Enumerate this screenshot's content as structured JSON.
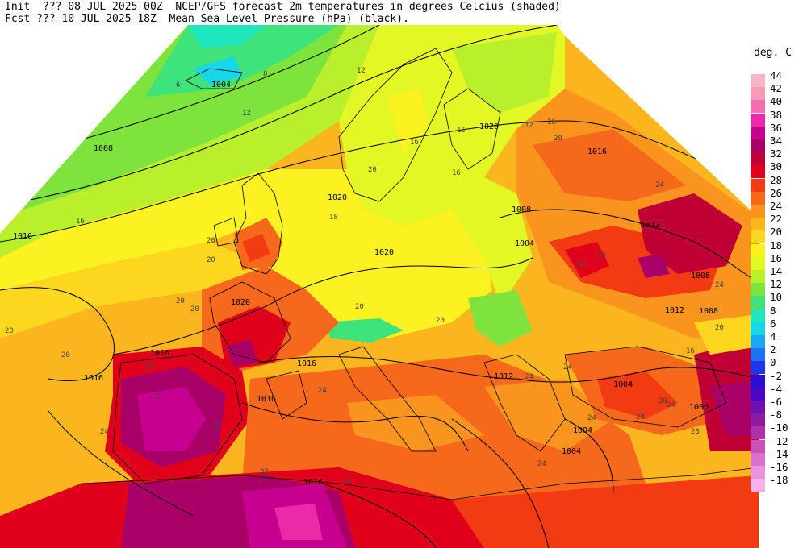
{
  "header": {
    "line1": "Init  ??? 08 JUL 2025 00Z  NCEP/GFS forecast 2m temperatures in degrees Celcius (shaded)",
    "line2": "Fcst ??? 10 JUL 2025 18Z  Mean Sea-Level Pressure (hPa) (black)."
  },
  "legend": {
    "title": "deg. C",
    "entries": [
      {
        "label": "44",
        "color": "#f7b6c6"
      },
      {
        "label": "42",
        "color": "#f59ab8"
      },
      {
        "label": "40",
        "color": "#f46fb0"
      },
      {
        "label": "38",
        "color": "#ea2aa6"
      },
      {
        "label": "36",
        "color": "#c8008f"
      },
      {
        "label": "34",
        "color": "#a80066"
      },
      {
        "label": "32",
        "color": "#c00035"
      },
      {
        "label": "30",
        "color": "#e0001c"
      },
      {
        "label": "28",
        "color": "#f23a13"
      },
      {
        "label": "26",
        "color": "#f6681c"
      },
      {
        "label": "24",
        "color": "#f9941e"
      },
      {
        "label": "22",
        "color": "#fbb51f"
      },
      {
        "label": "20",
        "color": "#fcd61f"
      },
      {
        "label": "18",
        "color": "#fdf221"
      },
      {
        "label": "16",
        "color": "#e3f725"
      },
      {
        "label": "14",
        "color": "#b9ef2b"
      },
      {
        "label": "12",
        "color": "#7fe33d"
      },
      {
        "label": "10",
        "color": "#3ee37b"
      },
      {
        "label": "8",
        "color": "#1fe8be"
      },
      {
        "label": "6",
        "color": "#17d6ea"
      },
      {
        "label": "4",
        "color": "#1aa8f2"
      },
      {
        "label": "2",
        "color": "#1c72f0"
      },
      {
        "label": "0",
        "color": "#1d36e8"
      },
      {
        "label": "-2",
        "color": "#2b0dd6"
      },
      {
        "label": "-4",
        "color": "#4a07c4"
      },
      {
        "label": "-6",
        "color": "#6f0fb0"
      },
      {
        "label": "-8",
        "color": "#8f1a9e"
      },
      {
        "label": "-10",
        "color": "#b12fa8"
      },
      {
        "label": "-12",
        "color": "#c850b8"
      },
      {
        "label": "-14",
        "color": "#dc72cc"
      },
      {
        "label": "-16",
        "color": "#ec93dc"
      },
      {
        "label": "-18",
        "color": "#f8b1ee"
      }
    ]
  },
  "map": {
    "isobar_labels": [
      "1004",
      "1008",
      "1016",
      "1020",
      "1020",
      "1020",
      "1016",
      "1016",
      "1016",
      "1016",
      "1008",
      "1004",
      "1012",
      "1008",
      "1012",
      "1008",
      "1016",
      "1020",
      "1012",
      "1004",
      "1000",
      "1004",
      "1004",
      "1016"
    ],
    "temp_labels": [
      "12",
      "8",
      "6",
      "12",
      "12",
      "16",
      "16",
      "20",
      "16",
      "20",
      "16",
      "16",
      "20",
      "18",
      "20",
      "20",
      "20",
      "20",
      "24",
      "20",
      "20",
      "24",
      "24",
      "24",
      "24",
      "28",
      "28",
      "28",
      "32",
      "28",
      "24",
      "16",
      "20",
      "20",
      "24",
      "24",
      "28",
      "28",
      "32",
      "28",
      "24",
      "20"
    ]
  }
}
